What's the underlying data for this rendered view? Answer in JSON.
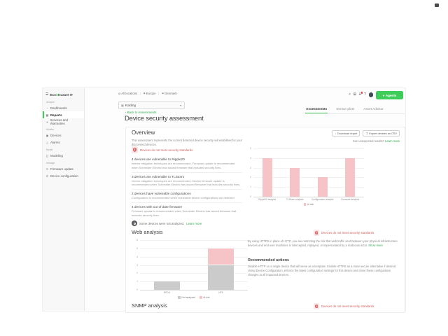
{
  "sidebar": {
    "logo": {
      "prefix": "Eco",
      "accent": "S",
      "suffix": "truxure IT"
    },
    "sections": [
      {
        "label": "Analyze",
        "items": [
          {
            "label": "Dashboards",
            "icon": "dashboards-icon",
            "active": false
          },
          {
            "label": "Reports",
            "icon": "reports-icon",
            "active": true
          },
          {
            "label": "Services and Warranties",
            "icon": "services-icon",
            "active": false
          }
        ]
      },
      {
        "label": "Monitor",
        "items": [
          {
            "label": "Devices",
            "icon": "devices-icon",
            "active": false
          },
          {
            "label": "Alarms",
            "icon": "alarms-icon",
            "active": false
          }
        ]
      },
      {
        "label": "Model",
        "items": [
          {
            "label": "Modeling",
            "icon": "modeling-icon",
            "active": false
          }
        ]
      },
      {
        "label": "Manage",
        "items": [
          {
            "label": "Firmware update",
            "icon": "firmware-icon",
            "active": false
          },
          {
            "label": "Device configuration",
            "icon": "config-icon",
            "active": false
          }
        ]
      }
    ]
  },
  "header": {
    "breadcrumb": [
      {
        "label": "All locations",
        "icon": "globe-icon"
      },
      {
        "label": "Europe",
        "icon": "pin-icon"
      },
      {
        "label": "Denmark",
        "icon": "pin-icon"
      }
    ],
    "location_selector": "Kolding",
    "icons": [
      {
        "name": "search-icon",
        "badge": false
      },
      {
        "name": "apps-icon",
        "badge": false
      },
      {
        "name": "notifications-icon",
        "badge": true
      },
      {
        "name": "help-icon",
        "badge": false
      }
    ],
    "agents_label": "Agents"
  },
  "tabs": [
    {
      "label": "Assessments",
      "active": true
    },
    {
      "label": "Sensor plots",
      "active": false
    },
    {
      "label": "Asset Advisor",
      "active": false
    }
  ],
  "back_link": "Back to Assessments",
  "page_title": "Device security assessment",
  "overview": {
    "title": "Overview",
    "description": "This assessment represents the current detected device security vulnerabilities for your discovered devices.",
    "download_button": "Download report",
    "export_button": "Export devices as CSV",
    "unexpected_text": "See unexpected results?",
    "unexpected_link": "Learn more",
    "alert_link": "Devices do not meet security standards",
    "findings": [
      {
        "title": "4 devices are vulnerable to Ripple20",
        "description": "Interim mitigation techniques are recommended. Firmware update is recommended when Schneider Electric has issued firmware that includes security fixes."
      },
      {
        "title": "3 devices are vulnerable to TLStorm",
        "description": "Interim mitigation techniques are recommended. Device firmware update is recommended when Schneider Electric has issued firmware that includes security fixes."
      },
      {
        "title": "2 devices have vulnerable configurations",
        "description": "Configuration is recommended when vulnerable device configurations are detected."
      },
      {
        "title": "4 devices with out of date firmware",
        "description": "Firmware update is recommended when Schneider Electric has issued firmware that includes security fixes."
      }
    ],
    "not_analyzed_text": "Some devices were not analyzed.",
    "not_analyzed_link": "Learn more"
  },
  "web_analysis": {
    "title": "Web analysis",
    "alert_link": "Devices do not meet security standards",
    "paragraph": "By using HTTPS in place of HTTP, you are restricting the risk that web traffic sent between your physical infrastructure devices and end user machines is intercepted, replayed, or impersonated by a malicious actor.",
    "show_more": "Show more",
    "recommended_title": "Recommended actions",
    "recommended_text": "Disable HTTP on a single device that will serve as a template. Enable HTTPS as a more secure alternative if desired. Using Device Configuration, enforce the latest configuration settings for this device and clone these configuration changes to all impacted devices."
  },
  "snmp": {
    "title": "SNMP analysis",
    "alert_link": "Devices do not meet security standards"
  },
  "chart_data": [
    {
      "type": "bar",
      "id": "overview-chart",
      "title": "",
      "xlabel": "",
      "ylabel": "",
      "categories": [
        "Ripple20 analysis",
        "TLStorm analysis",
        "Configuration analysis",
        "Firmware analysis"
      ],
      "series": [
        {
          "name": "At risk",
          "values": [
            4,
            3,
            2,
            4
          ],
          "color": "#f6c3c7"
        }
      ],
      "ylim": [
        0,
        5
      ],
      "grid": true,
      "legend_position": "bottom"
    },
    {
      "type": "bar",
      "id": "web-chart",
      "stacked": true,
      "title": "",
      "xlabel": "",
      "ylabel": "",
      "categories": [
        "RPDU",
        "UPS"
      ],
      "series": [
        {
          "name": "Not analyzed",
          "values": [
            1,
            3
          ],
          "color": "#cbcbcb"
        },
        {
          "name": "At risk",
          "values": [
            0,
            2
          ],
          "color": "#f6c3c7"
        }
      ],
      "ylim": [
        0,
        6
      ],
      "grid": true,
      "legend_position": "bottom"
    }
  ],
  "colors": {
    "accent_green": "#3dcd58",
    "link_green": "#2fa84f",
    "alert_red": "#cf5c5c",
    "bar_pink": "#f6c3c7",
    "bar_gray": "#cbcbcb"
  }
}
